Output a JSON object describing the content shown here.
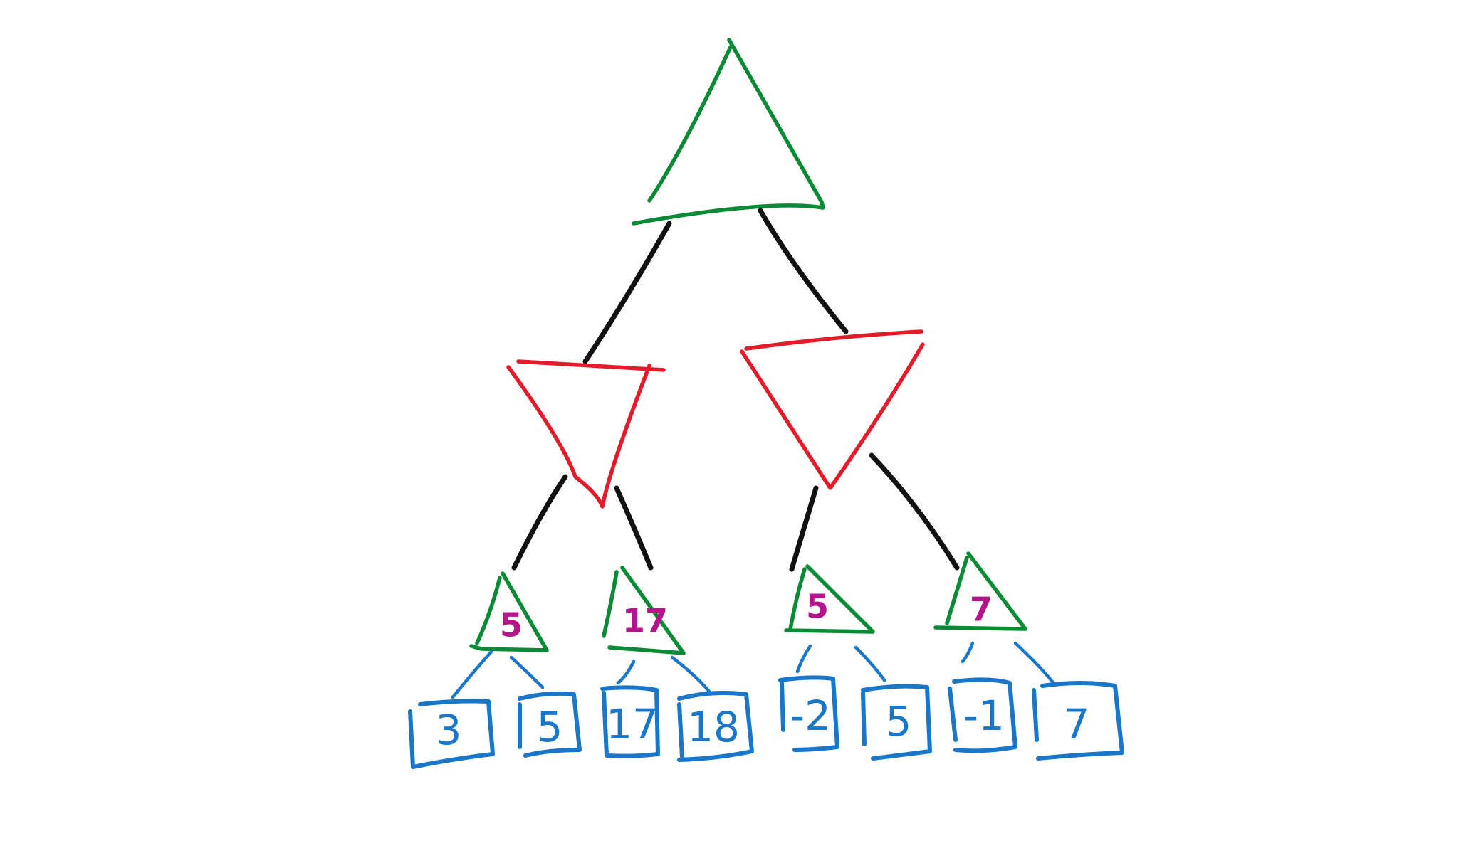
{
  "colors": {
    "max_node": "#0b8a35",
    "min_node": "#e41b2a",
    "edge": "#111111",
    "leaf": "#1976c8",
    "node_value": "#b5158a"
  },
  "root": {
    "shape": "triangle-up",
    "value": ""
  },
  "min_nodes": [
    {
      "shape": "triangle-down",
      "value": ""
    },
    {
      "shape": "triangle-down",
      "value": ""
    }
  ],
  "max_nodes": [
    {
      "shape": "triangle-up",
      "value": "5"
    },
    {
      "shape": "triangle-up",
      "value": "17"
    },
    {
      "shape": "triangle-up",
      "value": "5"
    },
    {
      "shape": "triangle-up",
      "value": "7"
    }
  ],
  "leaves": [
    {
      "value": "3"
    },
    {
      "value": "5"
    },
    {
      "value": "17"
    },
    {
      "value": "18"
    },
    {
      "value": "-2"
    },
    {
      "value": "5"
    },
    {
      "value": "-1"
    },
    {
      "value": "7"
    }
  ]
}
